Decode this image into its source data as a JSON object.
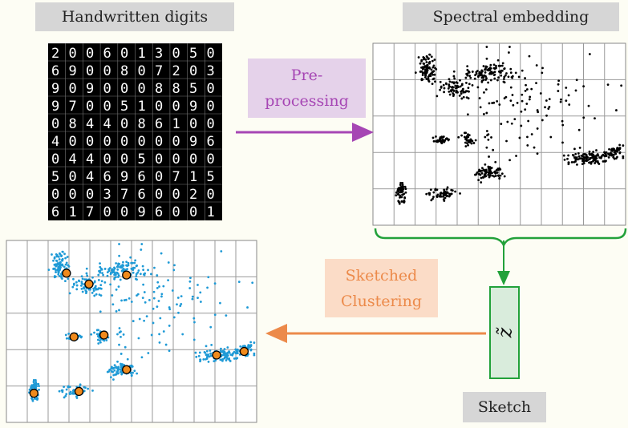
{
  "titles": {
    "digits": "Handwritten digits",
    "spectral": "Spectral embedding",
    "sketch": "Sketch"
  },
  "steps": {
    "preprocessing": [
      "Pre-",
      "processing"
    ],
    "sketched_clustering": [
      "Sketched",
      "Clustering"
    ]
  },
  "sketch_symbol": "z̃",
  "digits": [
    "2006013050",
    "6900807203",
    "9090008850",
    "9700510090",
    "0844086100",
    "4000000096",
    "0440050000",
    "5046960715",
    "0003760020",
    "6170096001"
  ],
  "colors": {
    "background": "#fdfdf4",
    "preprocessing_arrow": "#a646b4",
    "clustering_arrow": "#ec8a4a",
    "sketch_green": "#22a13a",
    "points_embedding": "#000000",
    "points_clustered": "#1f9ad6",
    "centroid": "#f08a1c"
  },
  "icons": [
    "digit-image-grid",
    "scatter-plot-black",
    "scatter-plot-blue",
    "curly-brace",
    "arrow"
  ]
}
